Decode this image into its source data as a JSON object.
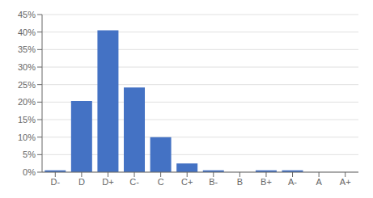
{
  "chart_data": {
    "type": "bar",
    "categories": [
      "D-",
      "D",
      "D+",
      "C-",
      "C",
      "C+",
      "B-",
      "B",
      "B+",
      "A-",
      "A",
      "A+"
    ],
    "values": [
      0.005,
      0.203,
      0.405,
      0.242,
      0.1,
      0.025,
      0.005,
      0.0,
      0.005,
      0.005,
      0.0,
      0.0
    ],
    "color": "#4472C4",
    "ylim": [
      0,
      0.45
    ],
    "yticks": [
      {
        "value": 0.0,
        "label": "0%"
      },
      {
        "value": 0.05,
        "label": "5%"
      },
      {
        "value": 0.1,
        "label": "10%"
      },
      {
        "value": 0.15,
        "label": "15%"
      },
      {
        "value": 0.2,
        "label": "20%"
      },
      {
        "value": 0.25,
        "label": "25%"
      },
      {
        "value": 0.3,
        "label": "30%"
      },
      {
        "value": 0.35,
        "label": "35%"
      },
      {
        "value": 0.4,
        "label": "40%"
      },
      {
        "value": 0.45,
        "label": "45%"
      }
    ],
    "grid": true
  }
}
